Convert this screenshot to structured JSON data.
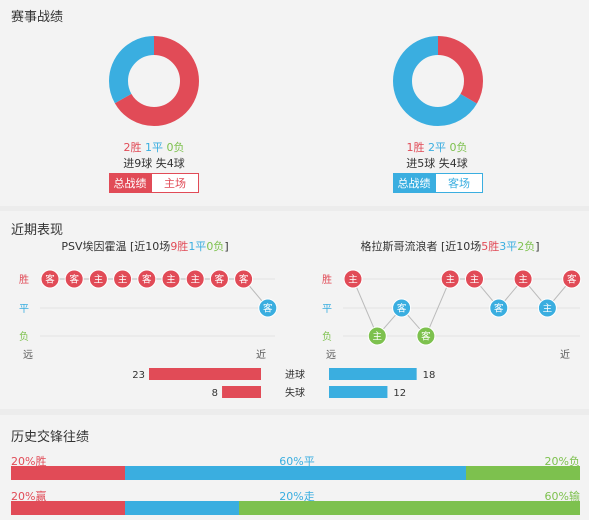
{
  "section1": {
    "title": "赛事战绩",
    "left": {
      "wins": "2胜",
      "draws": "1平",
      "losses": "0负",
      "goals": "进9球 失4球",
      "tab_active": "总战绩",
      "tab_inactive": "主场",
      "donut": [
        {
          "label": "胜",
          "value": 2,
          "color": "#e14b57"
        },
        {
          "label": "平",
          "value": 1,
          "color": "#3aaee0"
        },
        {
          "label": "负",
          "value": 0,
          "color": "#7dc14e"
        }
      ]
    },
    "right": {
      "wins": "1胜",
      "draws": "2平",
      "losses": "0负",
      "goals": "进5球 失4球",
      "tab_active": "总战绩",
      "tab_inactive": "客场",
      "donut": [
        {
          "label": "胜",
          "value": 1,
          "color": "#e14b57"
        },
        {
          "label": "平",
          "value": 2,
          "color": "#3aaee0"
        },
        {
          "label": "负",
          "value": 0,
          "color": "#7dc14e"
        }
      ]
    }
  },
  "section2": {
    "title": "近期表现",
    "left_team": {
      "name": "PSV埃因霍温",
      "rec_pre": "[近10场",
      "wins": "9胜",
      "draws": "1平",
      "losses": "0负",
      "rec_post": "]"
    },
    "right_team": {
      "name": "格拉斯哥流浪者",
      "rec_pre": "[近10场",
      "wins": "5胜",
      "draws": "3平",
      "losses": "2负",
      "rec_post": "]"
    },
    "y_labels": {
      "win": "胜",
      "draw": "平",
      "loss": "负"
    },
    "x_labels": {
      "far": "远",
      "near": "近"
    },
    "left_matches": [
      {
        "r": "W",
        "t": "客"
      },
      {
        "r": "W",
        "t": "客"
      },
      {
        "r": "W",
        "t": "主"
      },
      {
        "r": "W",
        "t": "主"
      },
      {
        "r": "W",
        "t": "客"
      },
      {
        "r": "W",
        "t": "主"
      },
      {
        "r": "W",
        "t": "主"
      },
      {
        "r": "W",
        "t": "客"
      },
      {
        "r": "W",
        "t": "客"
      },
      {
        "r": "D",
        "t": "客"
      }
    ],
    "right_matches": [
      {
        "r": "W",
        "t": "主"
      },
      {
        "r": "L",
        "t": "主"
      },
      {
        "r": "D",
        "t": "客"
      },
      {
        "r": "L",
        "t": "客"
      },
      {
        "r": "W",
        "t": "主"
      },
      {
        "r": "W",
        "t": "主"
      },
      {
        "r": "D",
        "t": "客"
      },
      {
        "r": "W",
        "t": "主"
      },
      {
        "r": "D",
        "t": "主"
      },
      {
        "r": "W",
        "t": "客"
      }
    ],
    "stats": {
      "goals_label": "进球",
      "conceded_label": "失球",
      "left_goals": 23,
      "left_conceded": 8,
      "right_goals": 18,
      "right_conceded": 12,
      "max": 23
    }
  },
  "section3": {
    "title": "历史交锋往绩",
    "row1": {
      "left": "20%胜",
      "mid": "60%平",
      "right": "20%负",
      "parts": [
        20,
        60,
        20
      ]
    },
    "row2": {
      "left": "20%赢",
      "mid": "20%走",
      "right": "60%输",
      "parts": [
        20,
        20,
        60
      ]
    }
  },
  "colors": {
    "red": "#e14b57",
    "blue": "#3aaee0",
    "green": "#7dc14e",
    "grey_line": "#dddddd"
  }
}
